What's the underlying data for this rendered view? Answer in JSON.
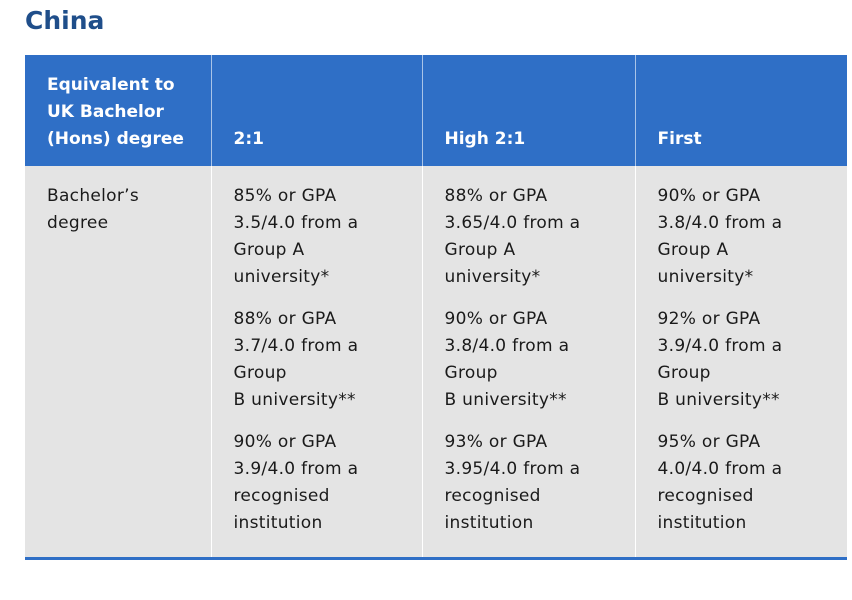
{
  "title": "China",
  "colors": {
    "header_bg": "#2f6fc6",
    "title": "#1f4e8a",
    "body_bg": "#e4e4e4"
  },
  "table": {
    "headers": [
      "Equivalent to UK Bachelor (Hons) degree",
      "2:1",
      "High 2:1",
      "First"
    ],
    "row_label": "Bachelor’s degree",
    "columns": [
      [
        "85% or GPA\n3.5/4.0 from a\nGroup A\nuniversity*",
        "88% or GPA\n3.7/4.0 from a\nGroup\nB university**",
        "90% or GPA\n3.9/4.0 from a\nrecognised\ninstitution"
      ],
      [
        "88% or GPA\n3.65/4.0 from a\nGroup A\nuniversity*",
        "90% or GPA\n3.8/4.0 from a\nGroup\nB university**",
        "93% or GPA\n3.95/4.0 from a\nrecognised\ninstitution"
      ],
      [
        "90% or GPA\n3.8/4.0 from a\nGroup A\nuniversity*",
        "92% or GPA\n3.9/4.0 from a\nGroup\nB university**",
        "95% or GPA\n4.0/4.0 from a\nrecognised\ninstitution"
      ]
    ]
  }
}
